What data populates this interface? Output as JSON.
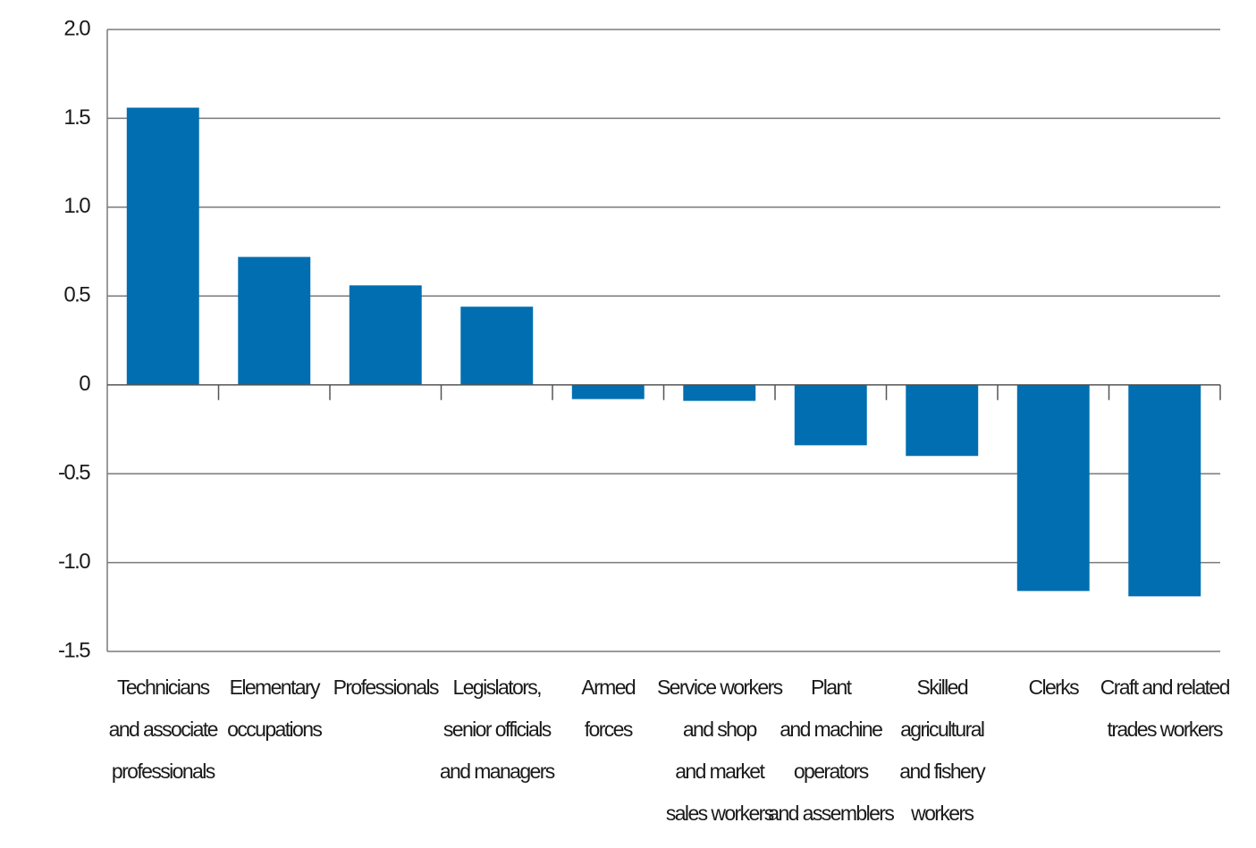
{
  "chart_data": {
    "type": "bar",
    "categories": [
      "Technicians\nand associate\nprofessionals",
      "Elementary\noccupations",
      "Professionals",
      "Legislators,\nsenior officials\nand managers",
      "Armed\nforces",
      "Service workers\nand shop\nand market\nsales workers",
      "Plant\nand machine\noperators\nand assemblers",
      "Skilled\nagricultural\nand fishery\nworkers",
      "Clerks",
      "Craft and related\ntrades workers"
    ],
    "values": [
      1.56,
      0.72,
      0.56,
      0.44,
      -0.08,
      -0.09,
      -0.34,
      -0.4,
      -1.16,
      -1.19
    ],
    "color": "#006eb0",
    "ylim": [
      -1.5,
      2
    ],
    "yticks": [
      {
        "value": 2,
        "label": "2.0"
      },
      1.5,
      {
        "value": 1,
        "label": "1.0"
      },
      0.5,
      0,
      -0.5,
      {
        "value": -1,
        "label": "-1.0"
      },
      -1.5
    ],
    "grid": true
  }
}
